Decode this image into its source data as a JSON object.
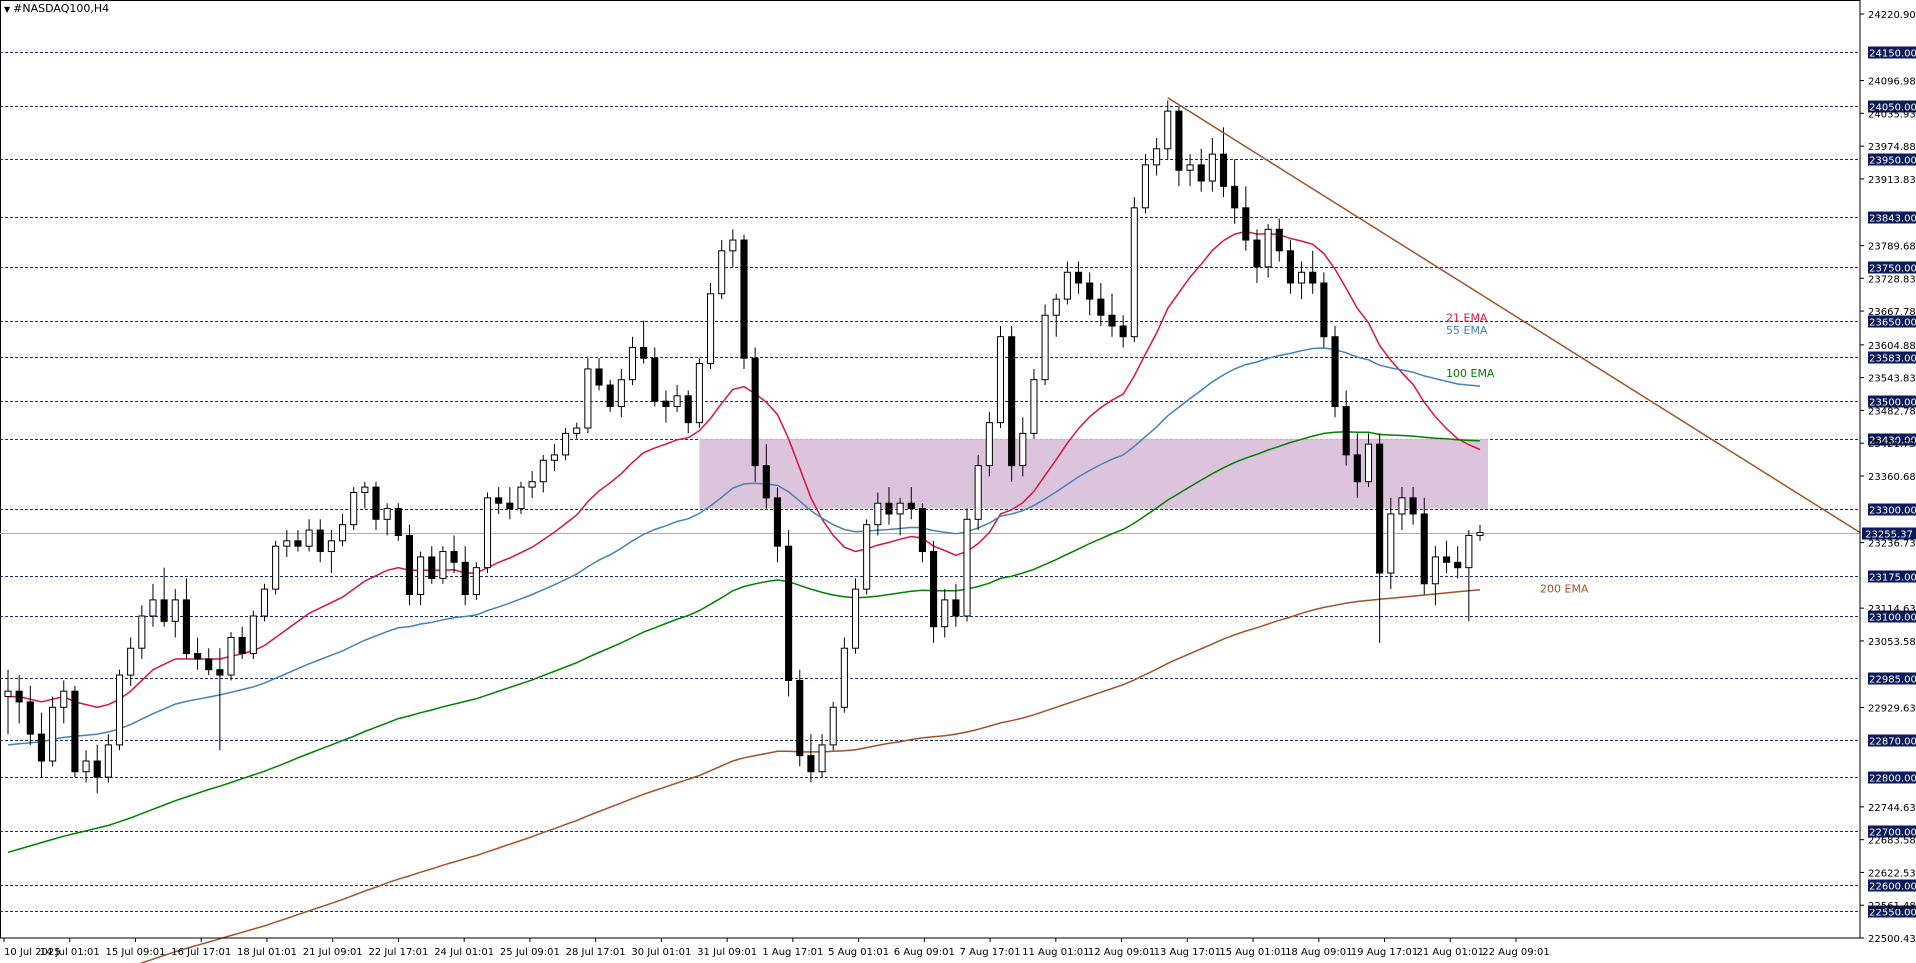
{
  "symbol_title": "#NASDAQ100,H4",
  "chart_data": {
    "type": "candlestick",
    "title": "#NASDAQ100,H4",
    "ylim": [
      22500.43,
      24220.9
    ],
    "y_tick_labels": [
      "24220.90",
      "24096.98",
      "24035.93",
      "23974.88",
      "23913.83",
      "23789.68",
      "23728.83",
      "23667.78",
      "23604.88",
      "23543.83",
      "23482.78",
      "23421.73",
      "23360.68",
      "23236.73",
      "23114.63",
      "23053.58",
      "22929.63",
      "22744.63",
      "22683.58",
      "22622.53",
      "22561.48",
      "22500.43"
    ],
    "x_tick_labels": [
      "10 Jul 2025",
      "14 Jul 01:01",
      "15 Jul 09:01",
      "16 Jul 17:01",
      "18 Jul 01:01",
      "21 Jul 09:01",
      "22 Jul 17:01",
      "24 Jul 01:01",
      "25 Jul 09:01",
      "28 Jul 17:01",
      "30 Jul 01:01",
      "31 Jul 09:01",
      "1 Aug 17:01",
      "5 Aug 01:01",
      "6 Aug 09:01",
      "7 Aug 17:01",
      "11 Aug 01:01",
      "12 Aug 09:01",
      "13 Aug 17:01",
      "15 Aug 01:01",
      "18 Aug 09:01",
      "19 Aug 17:01",
      "21 Aug 01:01",
      "22 Aug 09:01"
    ],
    "horizontal_levels": [
      "24150.00",
      "24050.00",
      "23950.00",
      "23843.00",
      "23750.00",
      "23650.00",
      "23583.00",
      "23500.00",
      "23430.00",
      "23300.00",
      "23175.00",
      "23100.00",
      "22985.00",
      "22870.00",
      "22800.00",
      "22700.00",
      "22600.00",
      "22550.00"
    ],
    "current_price": "23255.37",
    "zone": {
      "from": 23300,
      "to": 23430
    },
    "trendline": {
      "start": {
        "x": "12 Aug 09:01",
        "y": 24065
      },
      "end_price": 23255.37
    },
    "series": [
      {
        "name": "21 EMA",
        "color": "#dc143c"
      },
      {
        "name": "55 EMA",
        "color": "#4682b4"
      },
      {
        "name": "100 EMA",
        "color": "#008000"
      },
      {
        "name": "200 EMA",
        "color": "#a0522d"
      }
    ],
    "candles": [
      [
        22950,
        23000,
        22880,
        22960
      ],
      [
        22960,
        22990,
        22900,
        22940
      ],
      [
        22940,
        22970,
        22860,
        22880
      ],
      [
        22880,
        22920,
        22800,
        22830
      ],
      [
        22830,
        22950,
        22820,
        22930
      ],
      [
        22930,
        22980,
        22900,
        22960
      ],
      [
        22960,
        22970,
        22800,
        22810
      ],
      [
        22810,
        22850,
        22790,
        22830
      ],
      [
        22830,
        22860,
        22770,
        22800
      ],
      [
        22800,
        22880,
        22790,
        22860
      ],
      [
        22860,
        23000,
        22850,
        22990
      ],
      [
        22990,
        23060,
        22970,
        23040
      ],
      [
        23040,
        23120,
        23020,
        23100
      ],
      [
        23100,
        23160,
        23080,
        23130
      ],
      [
        23130,
        23190,
        23080,
        23090
      ],
      [
        23090,
        23150,
        23060,
        23130
      ],
      [
        23130,
        23170,
        23020,
        23030
      ],
      [
        23030,
        23060,
        23000,
        23020
      ],
      [
        23020,
        23040,
        22990,
        23000
      ],
      [
        23000,
        23040,
        22850,
        22990
      ],
      [
        22990,
        23070,
        22980,
        23060
      ],
      [
        23060,
        23080,
        23020,
        23030
      ],
      [
        23030,
        23110,
        23020,
        23100
      ],
      [
        23100,
        23160,
        23090,
        23150
      ],
      [
        23150,
        23240,
        23140,
        23230
      ],
      [
        23230,
        23260,
        23210,
        23240
      ],
      [
        23240,
        23260,
        23220,
        23230
      ],
      [
        23230,
        23280,
        23220,
        23260
      ],
      [
        23260,
        23280,
        23200,
        23220
      ],
      [
        23220,
        23260,
        23180,
        23240
      ],
      [
        23240,
        23290,
        23230,
        23270
      ],
      [
        23270,
        23340,
        23260,
        23330
      ],
      [
        23330,
        23350,
        23300,
        23340
      ],
      [
        23340,
        23350,
        23260,
        23280
      ],
      [
        23280,
        23310,
        23250,
        23300
      ],
      [
        23300,
        23310,
        23240,
        23250
      ],
      [
        23250,
        23270,
        23120,
        23140
      ],
      [
        23140,
        23220,
        23120,
        23210
      ],
      [
        23210,
        23230,
        23160,
        23170
      ],
      [
        23170,
        23230,
        23160,
        23220
      ],
      [
        23220,
        23250,
        23180,
        23200
      ],
      [
        23200,
        23230,
        23120,
        23140
      ],
      [
        23140,
        23200,
        23130,
        23190
      ],
      [
        23190,
        23330,
        23180,
        23320
      ],
      [
        23320,
        23340,
        23290,
        23310
      ],
      [
        23310,
        23340,
        23280,
        23300
      ],
      [
        23300,
        23350,
        23290,
        23340
      ],
      [
        23340,
        23370,
        23320,
        23350
      ],
      [
        23350,
        23400,
        23330,
        23390
      ],
      [
        23390,
        23420,
        23370,
        23400
      ],
      [
        23400,
        23450,
        23390,
        23440
      ],
      [
        23440,
        23460,
        23430,
        23450
      ],
      [
        23450,
        23580,
        23440,
        23560
      ],
      [
        23560,
        23580,
        23520,
        23530
      ],
      [
        23530,
        23540,
        23480,
        23490
      ],
      [
        23490,
        23560,
        23470,
        23540
      ],
      [
        23540,
        23620,
        23530,
        23600
      ],
      [
        23600,
        23650,
        23570,
        23580
      ],
      [
        23580,
        23600,
        23490,
        23500
      ],
      [
        23500,
        23520,
        23460,
        23490
      ],
      [
        23490,
        23530,
        23480,
        23510
      ],
      [
        23510,
        23520,
        23440,
        23460
      ],
      [
        23460,
        23580,
        23450,
        23570
      ],
      [
        23570,
        23720,
        23560,
        23700
      ],
      [
        23700,
        23800,
        23690,
        23780
      ],
      [
        23780,
        23820,
        23750,
        23800
      ],
      [
        23800,
        23810,
        23560,
        23580
      ],
      [
        23580,
        23600,
        23350,
        23380
      ],
      [
        23380,
        23420,
        23300,
        23320
      ],
      [
        23320,
        23340,
        23200,
        23230
      ],
      [
        23230,
        23260,
        22950,
        22980
      ],
      [
        22980,
        23000,
        22820,
        22840
      ],
      [
        22840,
        22880,
        22790,
        22810
      ],
      [
        22810,
        22880,
        22800,
        22860
      ],
      [
        22860,
        22940,
        22850,
        22930
      ],
      [
        22930,
        23060,
        22920,
        23040
      ],
      [
        23040,
        23170,
        23030,
        23150
      ],
      [
        23150,
        23280,
        23140,
        23270
      ],
      [
        23270,
        23330,
        23250,
        23310
      ],
      [
        23310,
        23340,
        23270,
        23290
      ],
      [
        23290,
        23320,
        23250,
        23310
      ],
      [
        23310,
        23340,
        23280,
        23300
      ],
      [
        23300,
        23310,
        23200,
        23220
      ],
      [
        23220,
        23240,
        23050,
        23080
      ],
      [
        23080,
        23150,
        23060,
        23130
      ],
      [
        23130,
        23160,
        23080,
        23100
      ],
      [
        23100,
        23300,
        23090,
        23280
      ],
      [
        23280,
        23400,
        23260,
        23380
      ],
      [
        23380,
        23480,
        23360,
        23460
      ],
      [
        23460,
        23640,
        23450,
        23620
      ],
      [
        23620,
        23640,
        23350,
        23380
      ],
      [
        23380,
        23470,
        23360,
        23440
      ],
      [
        23440,
        23560,
        23430,
        23540
      ],
      [
        23540,
        23680,
        23530,
        23660
      ],
      [
        23660,
        23700,
        23620,
        23690
      ],
      [
        23690,
        23760,
        23680,
        23740
      ],
      [
        23740,
        23760,
        23700,
        23720
      ],
      [
        23720,
        23740,
        23660,
        23690
      ],
      [
        23690,
        23720,
        23640,
        23660
      ],
      [
        23660,
        23700,
        23620,
        23640
      ],
      [
        23640,
        23660,
        23600,
        23620
      ],
      [
        23620,
        23880,
        23610,
        23860
      ],
      [
        23860,
        23960,
        23850,
        23940
      ],
      [
        23940,
        23990,
        23920,
        23970
      ],
      [
        23970,
        24060,
        23950,
        24040
      ],
      [
        24040,
        24050,
        23900,
        23930
      ],
      [
        23930,
        23960,
        23900,
        23940
      ],
      [
        23940,
        23970,
        23890,
        23910
      ],
      [
        23910,
        23990,
        23890,
        23960
      ],
      [
        23960,
        24010,
        23880,
        23900
      ],
      [
        23900,
        23950,
        23830,
        23860
      ],
      [
        23860,
        23900,
        23780,
        23800
      ],
      [
        23800,
        23820,
        23720,
        23750
      ],
      [
        23750,
        23830,
        23730,
        23820
      ],
      [
        23820,
        23840,
        23760,
        23780
      ],
      [
        23780,
        23800,
        23700,
        23720
      ],
      [
        23720,
        23760,
        23690,
        23740
      ],
      [
        23740,
        23780,
        23700,
        23720
      ],
      [
        23720,
        23740,
        23600,
        23620
      ],
      [
        23620,
        23640,
        23470,
        23490
      ],
      [
        23490,
        23520,
        23380,
        23400
      ],
      [
        23400,
        23440,
        23320,
        23350
      ],
      [
        23350,
        23440,
        23340,
        23420
      ],
      [
        23420,
        23440,
        23050,
        23180
      ],
      [
        23180,
        23320,
        23150,
        23290
      ],
      [
        23290,
        23340,
        23260,
        23320
      ],
      [
        23320,
        23340,
        23270,
        23290
      ],
      [
        23290,
        23320,
        23140,
        23160
      ],
      [
        23160,
        23230,
        23120,
        23210
      ],
      [
        23210,
        23240,
        23180,
        23200
      ],
      [
        23200,
        23230,
        23170,
        23190
      ],
      [
        23190,
        23260,
        23090,
        23250
      ],
      [
        23250,
        23270,
        23240,
        23255.37
      ]
    ],
    "ema21": [
      22950,
      22950,
      22945,
      22940,
      22945,
      22950,
      22940,
      22935,
      22930,
      22935,
      22945,
      22960,
      22980,
      23000,
      23010,
      23020,
      23020,
      23020,
      23020,
      23020,
      23025,
      23030,
      23035,
      23045,
      23060,
      23075,
      23090,
      23105,
      23115,
      23125,
      23135,
      23150,
      23165,
      23175,
      23185,
      23190,
      23185,
      23185,
      23185,
      23185,
      23186,
      23180,
      23180,
      23190,
      23200,
      23208,
      23218,
      23228,
      23242,
      23256,
      23272,
      23288,
      23313,
      23333,
      23348,
      23365,
      23386,
      23404,
      23413,
      23420,
      23428,
      23432,
      23445,
      23468,
      23496,
      23522,
      23527,
      23514,
      23498,
      23475,
      23430,
      23375,
      23320,
      23280,
      23250,
      23228,
      23220,
      23225,
      23232,
      23237,
      23243,
      23248,
      23245,
      23230,
      23222,
      23213,
      23220,
      23235,
      23255,
      23290,
      23298,
      23311,
      23332,
      23362,
      23391,
      23422,
      23449,
      23471,
      23488,
      23502,
      23513,
      23547,
      23588,
      23627,
      23673,
      23702,
      23731,
      23755,
      23781,
      23799,
      23811,
      23816,
      23811,
      23812,
      23810,
      23803,
      23798,
      23792,
      23775,
      23746,
      23710,
      23673,
      23646,
      23604,
      23576,
      23553,
      23531,
      23498,
      23471,
      23449,
      23430,
      23419,
      23410
    ],
    "ema55": [
      22860,
      22862,
      22864,
      22866,
      22870,
      22874,
      22876,
      22878,
      22880,
      22884,
      22890,
      22898,
      22908,
      22918,
      22927,
      22936,
      22941,
      22945,
      22949,
      22953,
      22958,
      22963,
      22968,
      22975,
      22984,
      22993,
      23002,
      23011,
      23019,
      23027,
      23035,
      23045,
      23055,
      23063,
      23071,
      23078,
      23080,
      23085,
      23088,
      23093,
      23097,
      23099,
      23102,
      23110,
      23117,
      23124,
      23132,
      23140,
      23149,
      23158,
      23168,
      23178,
      23192,
      23204,
      23214,
      23226,
      23240,
      23252,
      23261,
      23268,
      23276,
      23281,
      23291,
      23305,
      23321,
      23338,
      23346,
      23347,
      23346,
      23343,
      23331,
      23314,
      23296,
      23282,
      23270,
      23261,
      23257,
      23258,
      23260,
      23261,
      23263,
      23265,
      23264,
      23259,
      23256,
      23253,
      23257,
      23264,
      23273,
      23286,
      23290,
      23296,
      23306,
      23318,
      23331,
      23345,
      23359,
      23371,
      23382,
      23392,
      23400,
      23416,
      23434,
      23452,
      23473,
      23489,
      23505,
      23520,
      23536,
      23549,
      23560,
      23568,
      23573,
      23580,
      23585,
      23589,
      23594,
      23598,
      23599,
      23596,
      23590,
      23582,
      23577,
      23567,
      23562,
      23558,
      23554,
      23547,
      23542,
      23537,
      23532,
      23530,
      23528
    ],
    "ema100": [
      22660,
      22666,
      22672,
      22678,
      22684,
      22690,
      22695,
      22700,
      22705,
      22710,
      22717,
      22724,
      22732,
      22740,
      22748,
      22756,
      22763,
      22770,
      22777,
      22783,
      22790,
      22797,
      22804,
      22811,
      22819,
      22827,
      22836,
      22844,
      22852,
      22860,
      22868,
      22876,
      22885,
      22893,
      22901,
      22909,
      22914,
      22920,
      22925,
      22931,
      22936,
      22941,
      22946,
      22953,
      22960,
      22967,
      22974,
      22981,
      22989,
      22997,
      23005,
      23013,
      23023,
      23032,
      23041,
      23050,
      23060,
      23070,
      23078,
      23086,
      23094,
      23101,
      23110,
      23122,
      23134,
      23147,
      23155,
      23160,
      23164,
      23167,
      23164,
      23157,
      23150,
      23144,
      23139,
      23136,
      23134,
      23135,
      23137,
      23140,
      23143,
      23146,
      23148,
      23147,
      23147,
      23147,
      23150,
      23155,
      23161,
      23170,
      23174,
      23180,
      23187,
      23196,
      23205,
      23215,
      23225,
      23235,
      23244,
      23253,
      23261,
      23273,
      23287,
      23301,
      23316,
      23328,
      23341,
      23353,
      23365,
      23376,
      23386,
      23394,
      23401,
      23409,
      23416,
      23423,
      23429,
      23435,
      23440,
      23442,
      23443,
      23442,
      23442,
      23438,
      23437,
      23436,
      23435,
      23433,
      23431,
      23430,
      23428,
      23427,
      23426
    ],
    "ema200": [
      22380,
      22386,
      22392,
      22398,
      22404,
      22410,
      22416,
      22422,
      22428,
      22434,
      22440,
      22447,
      22454,
      22461,
      22468,
      22475,
      22481,
      22487,
      22493,
      22499,
      22505,
      22511,
      22517,
      22523,
      22530,
      22537,
      22544,
      22551,
      22558,
      22565,
      22572,
      22580,
      22588,
      22595,
      22603,
      22610,
      22616,
      22623,
      22629,
      22636,
      22642,
      22648,
      22654,
      22661,
      22668,
      22675,
      22682,
      22689,
      22697,
      22704,
      22712,
      22719,
      22728,
      22736,
      22744,
      22752,
      22760,
      22768,
      22775,
      22782,
      22789,
      22796,
      22803,
      22812,
      22821,
      22830,
      22836,
      22840,
      22844,
      22848,
      22848,
      22847,
      22847,
      22847,
      22848,
      22849,
      22851,
      22855,
      22859,
      22863,
      22866,
      22870,
      22873,
      22875,
      22877,
      22880,
      22884,
      22889,
      22895,
      22901,
      22905,
      22910,
      22916,
      22923,
      22930,
      22937,
      22944,
      22951,
      22958,
      22965,
      22972,
      22981,
      22991,
      23001,
      23012,
      23021,
      23030,
      23039,
      23048,
      23057,
      23065,
      23072,
      23078,
      23085,
      23092,
      23098,
      23105,
      23111,
      23116,
      23120,
      23124,
      23127,
      23129,
      23131,
      23133,
      23135,
      23137,
      23139,
      23141,
      23143,
      23145,
      23147,
      23149
    ]
  }
}
